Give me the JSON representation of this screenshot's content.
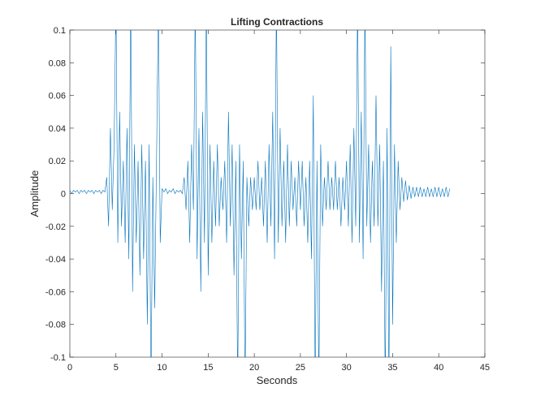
{
  "chart_data": {
    "type": "line",
    "title": "Lifting Contractions",
    "x_label": "Seconds",
    "y_label": "Amplitude",
    "xlim": [
      0,
      45
    ],
    "xticks": [
      0,
      5,
      10,
      15,
      20,
      25,
      30,
      35,
      40,
      45
    ],
    "ylim": [
      -0.1,
      0.1
    ],
    "yticks": [
      -0.1,
      -0.08,
      -0.06,
      -0.04,
      -0.02,
      0,
      0.02,
      0.04,
      0.06,
      0.08,
      0.1
    ],
    "grid": false,
    "x": [
      0,
      0.2,
      0.4,
      0.6,
      0.8,
      1,
      1.2,
      1.4,
      1.6,
      1.8,
      2,
      2.2,
      2.4,
      2.6,
      2.8,
      3,
      3.2,
      3.4,
      3.6,
      3.8,
      4,
      4.2,
      4.4,
      4.6,
      4.8,
      5,
      5.2,
      5.4,
      5.6,
      5.8,
      6,
      6.2,
      6.4,
      6.6,
      6.8,
      7,
      7.2,
      7.4,
      7.6,
      7.8,
      8,
      8.2,
      8.4,
      8.6,
      8.8,
      9,
      9.2,
      9.4,
      9.6,
      9.8,
      10,
      10.2,
      10.4,
      10.6,
      10.8,
      11,
      11.2,
      11.4,
      11.6,
      11.8,
      12,
      12.2,
      12.4,
      12.6,
      12.8,
      13,
      13.2,
      13.4,
      13.6,
      13.8,
      14,
      14.2,
      14.4,
      14.6,
      14.8,
      15,
      15.2,
      15.4,
      15.6,
      15.8,
      16,
      16.2,
      16.4,
      16.6,
      16.8,
      17,
      17.2,
      17.4,
      17.6,
      17.8,
      18,
      18.2,
      18.4,
      18.6,
      18.8,
      19,
      19.2,
      19.4,
      19.6,
      19.8,
      20,
      20.2,
      20.4,
      20.6,
      20.8,
      21,
      21.2,
      21.4,
      21.6,
      21.8,
      22,
      22.2,
      22.4,
      22.6,
      22.8,
      23,
      23.2,
      23.4,
      23.6,
      23.8,
      24,
      24.2,
      24.4,
      24.6,
      24.8,
      25,
      25.2,
      25.4,
      25.6,
      25.8,
      26,
      26.2,
      26.4,
      26.6,
      26.8,
      27,
      27.2,
      27.4,
      27.6,
      27.8,
      28,
      28.2,
      28.4,
      28.6,
      28.8,
      29,
      29.2,
      29.4,
      29.6,
      29.8,
      30,
      30.2,
      30.4,
      30.6,
      30.8,
      31,
      31.2,
      31.4,
      31.6,
      31.8,
      32,
      32.2,
      32.4,
      32.6,
      32.8,
      33,
      33.2,
      33.4,
      33.6,
      33.8,
      34,
      34.2,
      34.4,
      34.6,
      34.8,
      35,
      35.2,
      35.4,
      35.6,
      35.8,
      36,
      36.2,
      36.4,
      36.6,
      36.8,
      37,
      37.2,
      37.4,
      37.6,
      37.8,
      38,
      38.2,
      38.4,
      38.6,
      38.8,
      39,
      39.2,
      39.4,
      39.6,
      39.8,
      40,
      40.2,
      40.4,
      40.6,
      40.8,
      41,
      41.2
    ],
    "series": [
      {
        "name": "Amplitude",
        "color": "#0072bd",
        "values": [
          0.002,
          0,
          0.002,
          0.001,
          0.002,
          0,
          0.002,
          0.001,
          0.002,
          0,
          0.002,
          0.001,
          0.002,
          0,
          0.002,
          0.001,
          0.002,
          0,
          0.002,
          0.001,
          0.01,
          -0.02,
          0.04,
          -0.01,
          0.03,
          0.12,
          -0.03,
          0.05,
          -0.02,
          0.02,
          -0.03,
          0.04,
          -0.04,
          0.12,
          -0.06,
          0.03,
          -0.03,
          0.02,
          -0.05,
          0.03,
          -0.04,
          0.02,
          -0.08,
          0.03,
          -0.12,
          0.01,
          -0.07,
          0.02,
          0.12,
          -0.03,
          0.003,
          0.001,
          0.003,
          0,
          0.002,
          0.001,
          0.003,
          0,
          0.002,
          0.001,
          0.002,
          0,
          0.01,
          -0.01,
          0.02,
          -0.03,
          0.03,
          -0.01,
          0.12,
          -0.04,
          0.04,
          -0.06,
          0.05,
          -0.03,
          0.12,
          -0.05,
          0.03,
          -0.03,
          0.02,
          -0.02,
          0.03,
          -0.02,
          0.01,
          -0.01,
          0.02,
          -0.03,
          0.05,
          -0.02,
          0.03,
          -0.05,
          0.02,
          -0.12,
          0.03,
          -0.04,
          0.02,
          -0.12,
          0.01,
          -0.02,
          0.01,
          -0.01,
          0.01,
          -0.01,
          0.02,
          -0.01,
          0.01,
          -0.02,
          0.02,
          -0.03,
          0.03,
          -0.02,
          0.05,
          -0.04,
          0.12,
          -0.03,
          0.04,
          -0.02,
          0.02,
          -0.03,
          0.03,
          -0.02,
          0.02,
          -0.01,
          0.01,
          -0.02,
          0.02,
          -0.01,
          0.02,
          -0.02,
          0.01,
          -0.03,
          0.02,
          -0.04,
          0.06,
          -0.12,
          0.02,
          -0.12,
          0.03,
          -0.02,
          0.01,
          -0.01,
          0.02,
          -0.01,
          0.01,
          -0.01,
          0.02,
          -0.01,
          0.01,
          -0.02,
          0.01,
          -0.01,
          0.02,
          -0.02,
          0.03,
          -0.03,
          0.04,
          -0.02,
          0.12,
          -0.03,
          0.05,
          -0.04,
          0.12,
          -0.02,
          0.03,
          -0.03,
          0.02,
          -0.02,
          0.06,
          -0.02,
          0.03,
          -0.06,
          0.02,
          -0.12,
          0.04,
          -0.12,
          0.09,
          -0.08,
          0.03,
          -0.03,
          0.02,
          -0.01,
          0.01,
          -0.005,
          0.008,
          -0.004,
          0.005,
          -0.003,
          0.004,
          -0.002,
          0.004,
          -0.002,
          0.004,
          -0.002,
          0.003,
          -0.002,
          0.004,
          -0.002,
          0.003,
          -0.002,
          0.004,
          -0.002,
          0.004,
          -0.002,
          0.003,
          -0.002,
          0.004,
          -0.002,
          0.003
        ]
      }
    ]
  }
}
